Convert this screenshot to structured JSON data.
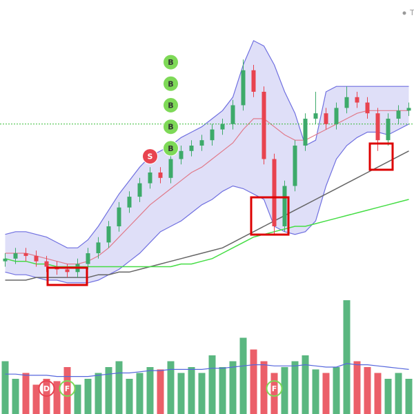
{
  "chart_data": {
    "type": "candlestick",
    "legend_label": "T",
    "ylim": [
      0,
      100
    ],
    "volume_ylim": [
      0,
      100
    ],
    "up_color": "#3daa6a",
    "down_color": "#e8434f",
    "ohlc": {
      "open": [
        17,
        18,
        20,
        19,
        17,
        15,
        14,
        13,
        16,
        20,
        24,
        30,
        37,
        41,
        46,
        50,
        48,
        55,
        58,
        60,
        62,
        66,
        68,
        75,
        88,
        80,
        55,
        30,
        45,
        60,
        70,
        72,
        68,
        74,
        78,
        76,
        72,
        62,
        70,
        73
      ],
      "high": [
        20,
        22,
        22,
        21,
        19,
        17,
        16,
        18,
        22,
        26,
        32,
        39,
        43,
        48,
        52,
        52,
        57,
        60,
        62,
        64,
        68,
        70,
        77,
        92,
        90,
        82,
        57,
        47,
        62,
        72,
        80,
        74,
        76,
        82,
        80,
        78,
        74,
        72,
        75,
        76
      ],
      "low": [
        15,
        16,
        17,
        15,
        13,
        12,
        11,
        11,
        14,
        18,
        22,
        28,
        35,
        39,
        44,
        46,
        46,
        53,
        56,
        58,
        60,
        64,
        66,
        73,
        78,
        53,
        27,
        28,
        43,
        58,
        68,
        66,
        66,
        72,
        74,
        70,
        58,
        60,
        68,
        71
      ],
      "close": [
        18,
        20,
        19,
        17,
        15,
        14,
        13,
        16,
        20,
        24,
        30,
        37,
        41,
        46,
        50,
        48,
        55,
        58,
        60,
        62,
        66,
        68,
        75,
        88,
        80,
        55,
        30,
        45,
        60,
        70,
        72,
        68,
        74,
        78,
        76,
        72,
        62,
        70,
        73,
        74
      ]
    },
    "band": {
      "color": "#6f6fe0",
      "upper": [
        27,
        28,
        28,
        27,
        26,
        24,
        22,
        22,
        25,
        30,
        36,
        42,
        47,
        52,
        56,
        58,
        60,
        63,
        65,
        67,
        70,
        73,
        78,
        90,
        99,
        97,
        90,
        80,
        72,
        60,
        62,
        80,
        82,
        82,
        82,
        82,
        82,
        82,
        82,
        82
      ],
      "middle": [
        20,
        20,
        20,
        19,
        18,
        17,
        16,
        16,
        17,
        19,
        22,
        26,
        30,
        34,
        38,
        41,
        44,
        47,
        50,
        52,
        55,
        58,
        61,
        66,
        70,
        70,
        67,
        64,
        62,
        62,
        64,
        66,
        68,
        70,
        72,
        73,
        73,
        73,
        73,
        73
      ],
      "lower": [
        13,
        12,
        12,
        11,
        10,
        10,
        9,
        9,
        9,
        10,
        12,
        14,
        17,
        20,
        24,
        28,
        30,
        32,
        35,
        38,
        40,
        43,
        45,
        44,
        42,
        40,
        30,
        28,
        27,
        28,
        32,
        45,
        55,
        60,
        63,
        65,
        65,
        64,
        66,
        68
      ]
    },
    "lines": [
      {
        "color": "#666666",
        "values": [
          10,
          10,
          10,
          11,
          11,
          11,
          11,
          11,
          11,
          12,
          12,
          13,
          13,
          14,
          15,
          16,
          17,
          18,
          19,
          20,
          21,
          22,
          24,
          26,
          28,
          30,
          32,
          34,
          36,
          38,
          40,
          42,
          44,
          46,
          48,
          50,
          52,
          54,
          56,
          58
        ]
      },
      {
        "color": "#44dd44",
        "values": [
          18,
          17,
          17,
          16,
          16,
          15,
          15,
          15,
          15,
          15,
          15,
          15,
          15,
          15,
          15,
          15,
          15,
          16,
          16,
          17,
          18,
          20,
          22,
          24,
          26,
          27,
          28,
          29,
          30,
          30,
          31,
          32,
          33,
          34,
          35,
          36,
          37,
          38,
          39,
          40
        ]
      }
    ],
    "reference_line": {
      "value": 68,
      "color": "#33bb33"
    },
    "volume": {
      "values": [
        45,
        30,
        35,
        25,
        30,
        28,
        40,
        25,
        30,
        35,
        40,
        45,
        30,
        35,
        40,
        38,
        45,
        35,
        40,
        35,
        50,
        40,
        45,
        65,
        55,
        45,
        35,
        40,
        45,
        50,
        38,
        35,
        40,
        97,
        45,
        40,
        35,
        30,
        35,
        30
      ],
      "ma": [
        34,
        34,
        33,
        33,
        33,
        32,
        32,
        32,
        32,
        33,
        34,
        35,
        35,
        36,
        37,
        37,
        38,
        38,
        38,
        38,
        39,
        39,
        40,
        41,
        42,
        42,
        41,
        41,
        41,
        42,
        41,
        40,
        40,
        43,
        42,
        42,
        41,
        40,
        39,
        38
      ],
      "ma_color": "#5566dd"
    },
    "markers": [
      {
        "label": "B",
        "index": 16,
        "price": 91,
        "color": "#7ed957"
      },
      {
        "label": "B",
        "index": 16,
        "price": 83,
        "color": "#7ed957"
      },
      {
        "label": "B",
        "index": 16,
        "price": 75,
        "color": "#7ed957"
      },
      {
        "label": "B",
        "index": 16,
        "price": 67,
        "color": "#7ed957"
      },
      {
        "label": "B",
        "index": 16,
        "price": 59,
        "color": "#7ed957"
      },
      {
        "label": "S",
        "index": 14,
        "price": 56,
        "color": "#e8434f"
      }
    ],
    "volume_markers": [
      {
        "label": "D",
        "index": 4,
        "color": "#e8434f"
      },
      {
        "label": "F",
        "index": 6,
        "color": "#7ed957"
      },
      {
        "label": "F",
        "index": 26,
        "color": "#7ed957"
      }
    ]
  }
}
